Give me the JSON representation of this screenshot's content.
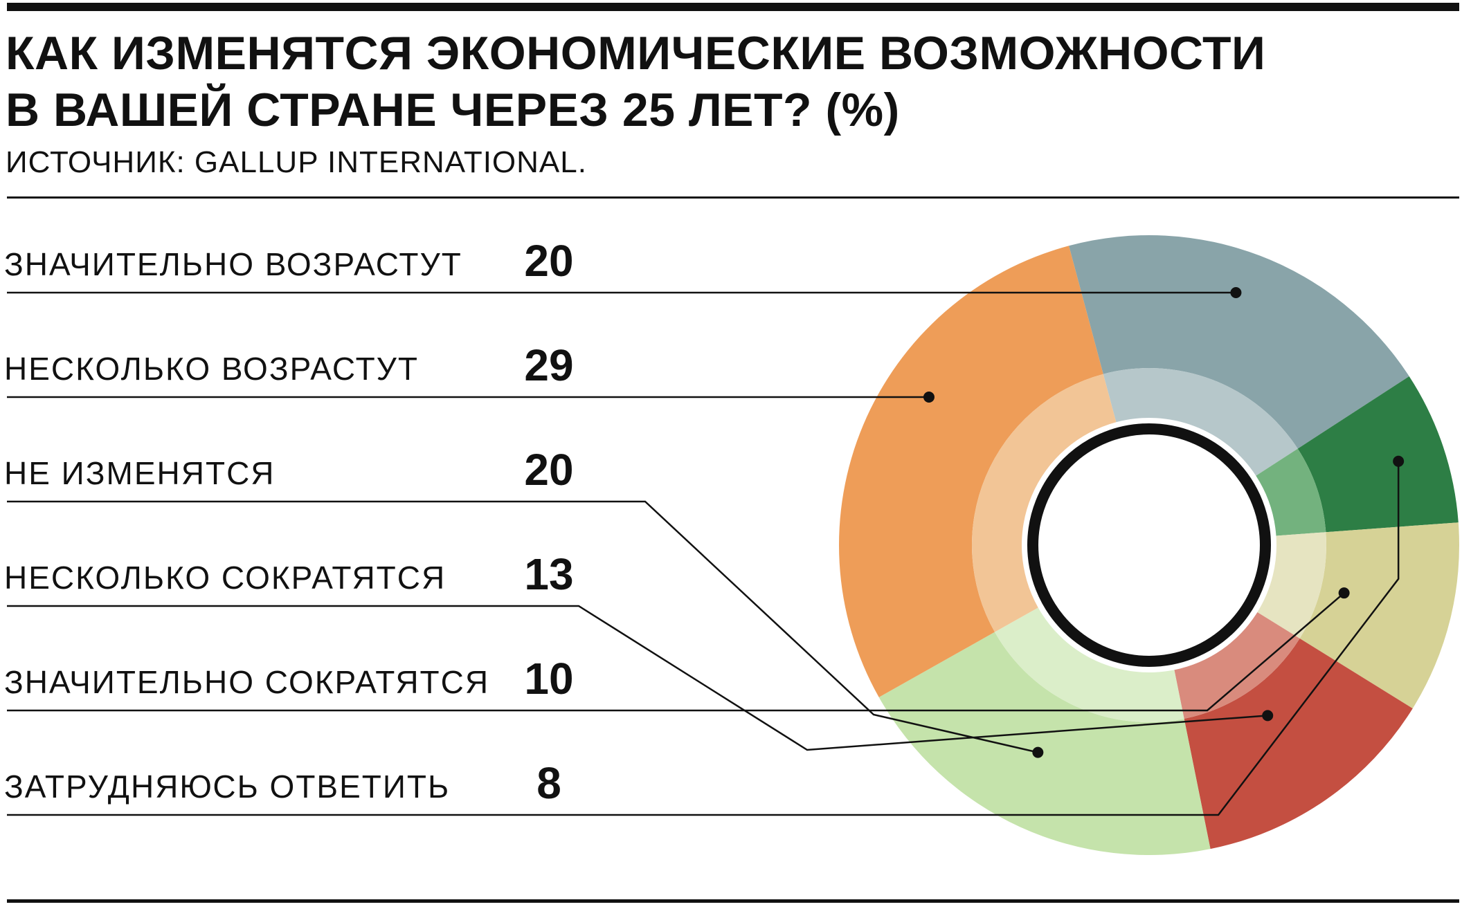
{
  "header": {
    "title_line1": "КАК ИЗМЕНЯТСЯ ЭКОНОМИЧЕСКИЕ ВОЗМОЖНОСТИ",
    "title_line2": "В ВАШЕЙ СТРАНЕ ЧЕРЕЗ 25 ЛЕТ? (%)",
    "source": "ИСТОЧНИК: GALLUP INTERNATIONAL."
  },
  "chart_data": {
    "type": "pie",
    "title": "КАК ИЗМЕНЯТСЯ ЭКОНОМИЧЕСКИЕ ВОЗМОЖНОСТИ В ВАШЕЙ СТРАНЕ ЧЕРЕЗ 25 ЛЕТ? (%)",
    "categories": [
      "ЗНАЧИТЕЛЬНО ВОЗРАСТУТ",
      "НЕСКОЛЬКО ВОЗРАСТУТ",
      "НЕ ИЗМЕНЯТСЯ",
      "НЕСКОЛЬКО СОКРАТЯТСЯ",
      "ЗНАЧИТЕЛЬНО СОКРАТЯТСЯ",
      "ЗАТРУДНЯЮСЬ ОТВЕТИТЬ"
    ],
    "values": [
      20,
      29,
      20,
      13,
      10,
      8
    ],
    "value_labels": [
      "20",
      "29",
      "20",
      "13",
      "10",
      "8"
    ],
    "colors": [
      "#89a4a9",
      "#ee9d58",
      "#c5e3ab",
      "#c44f41",
      "#d6d296",
      "#2d7e45"
    ],
    "inner_colors": [
      "#b6c7ca",
      "#f2c596",
      "#dbeec9",
      "#d98b7d",
      "#e6e4c1",
      "#73b27e"
    ]
  }
}
